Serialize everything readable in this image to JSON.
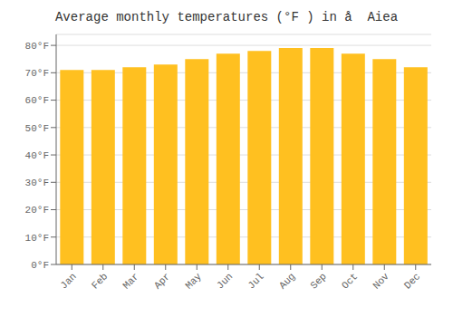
{
  "chart_data": {
    "type": "bar",
    "title": "Average monthly temperatures (°F ) in å  Aiea",
    "categories": [
      "Jan",
      "Feb",
      "Mar",
      "Apr",
      "May",
      "Jun",
      "Jul",
      "Aug",
      "Sep",
      "Oct",
      "Nov",
      "Dec"
    ],
    "values": [
      71,
      71,
      72,
      73,
      75,
      77,
      78,
      79,
      79,
      77,
      75,
      72
    ],
    "color": "#FFC020",
    "ylim": [
      0,
      84
    ],
    "yticks": [
      {
        "value": 0,
        "label": "0°F"
      },
      {
        "value": 10,
        "label": "10°F"
      },
      {
        "value": 20,
        "label": "20°F"
      },
      {
        "value": 30,
        "label": "30°F"
      },
      {
        "value": 40,
        "label": "40°F"
      },
      {
        "value": 50,
        "label": "50°F"
      },
      {
        "value": 60,
        "label": "60°F"
      },
      {
        "value": 70,
        "label": "70°F"
      },
      {
        "value": 80,
        "label": "80°F"
      }
    ],
    "grid": true
  }
}
